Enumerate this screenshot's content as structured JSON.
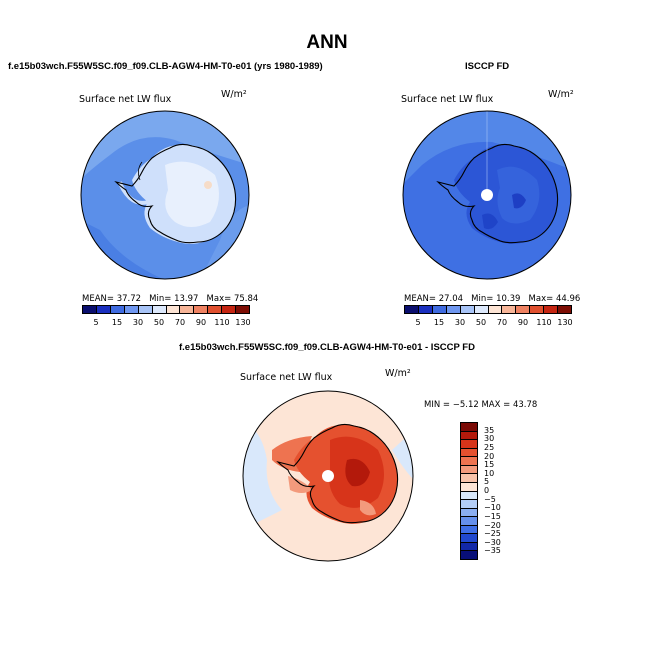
{
  "title": "ANN",
  "panel1": {
    "case": "f.e15b03wch.F55W5SC.f09_f09.CLB-AGW4-HM-T0-e01 (yrs 1980-1989)",
    "label": "Surface net LW flux",
    "units": "W/m²",
    "mean_label": "MEAN=",
    "mean": "37.72",
    "min_label": "Min=",
    "min": "13.97",
    "max_label": "Max=",
    "max": "75.84"
  },
  "panel2": {
    "case": "ISCCP FD",
    "label": "Surface net LW flux",
    "units": "W/m²",
    "mean_label": "MEAN=",
    "mean": "27.04",
    "min_label": "Min=",
    "min": "10.39",
    "max_label": "Max=",
    "max": "44.96"
  },
  "panel3": {
    "case": "f.e15b03wch.F55W5SC.f09_f09.CLB-AGW4-HM-T0-e01 - ISCCP FD",
    "label": "Surface net LW flux",
    "units": "W/m²",
    "minmax": "MIN = −5.12  MAX =  43.78"
  },
  "colorbar_levels": [
    "5",
    "15",
    "30",
    "50",
    "70",
    "90",
    "110",
    "130"
  ],
  "colorbar_colors": [
    "#0a0e6e",
    "#1a2fbf",
    "#3f6be0",
    "#6f97f0",
    "#a8c4f7",
    "#dde9fc",
    "#fde4d4",
    "#f7b598",
    "#ef8262",
    "#e0502f",
    "#c52512",
    "#7d0d04"
  ],
  "diff_levels": [
    "35",
    "30",
    "25",
    "20",
    "15",
    "10",
    "5",
    "0",
    "−5",
    "−10",
    "−15",
    "−20",
    "−25",
    "−30",
    "−35"
  ],
  "diff_colors": [
    "#7a0a05",
    "#b3190b",
    "#d7341a",
    "#e5512f",
    "#ee7350",
    "#f39a7c",
    "#f8c3aa",
    "#fde5d6",
    "#d9e8fb",
    "#b3cdf6",
    "#8aaef1",
    "#6590ec",
    "#3f6fe6",
    "#2149cf",
    "#1228a8",
    "#080f78"
  ]
}
